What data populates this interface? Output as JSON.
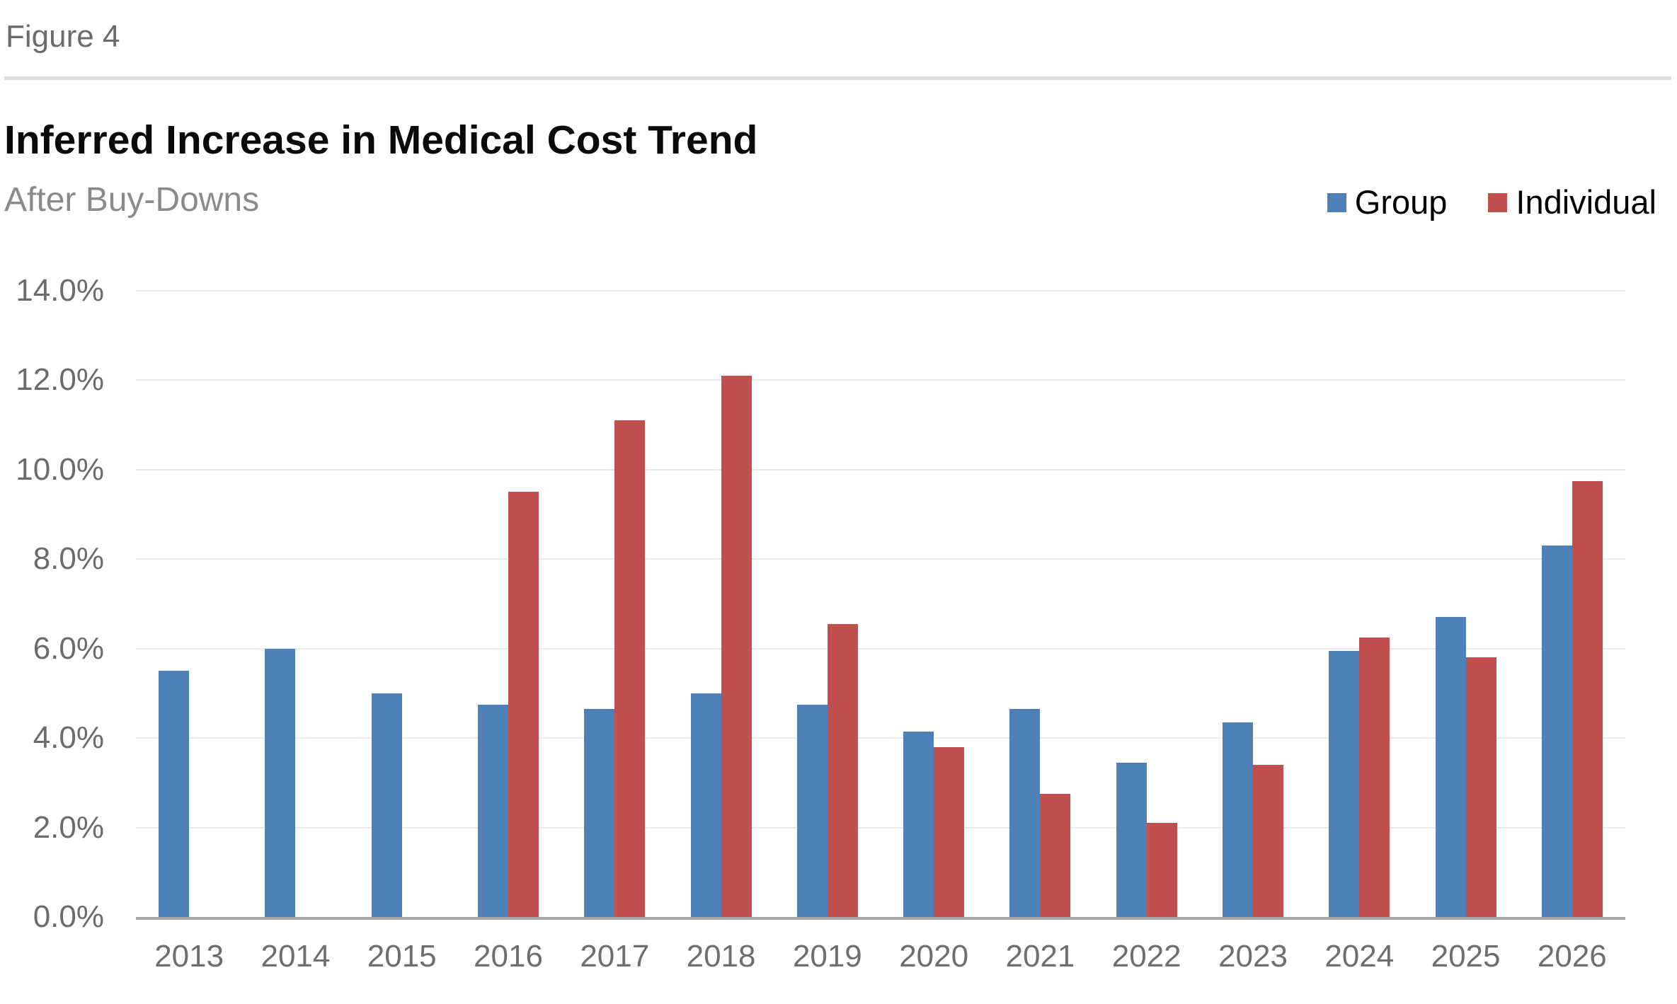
{
  "figure_label": "Figure 4",
  "title": "Inferred Increase in Medical Cost Trend",
  "subtitle": "After Buy-Downs",
  "legend": {
    "position": "top-right",
    "items": [
      {
        "label": "Group",
        "color": "#4e80b8"
      },
      {
        "label": "Individual",
        "color": "#bf504e"
      }
    ]
  },
  "colors": {
    "group_bar": "#4e80b8",
    "individual_bar": "#bf504e",
    "axis_text": "#6b6b6b",
    "gridline": "#eaeaea",
    "axis_line": "#a6a6a6",
    "title_text": "#0a0a0a",
    "subtitle_text": "#8a8a8a",
    "divider": "#dcdcdc"
  },
  "chart_data": {
    "type": "bar",
    "title": "Inferred Increase in Medical Cost Trend",
    "subtitle": "After Buy-Downs",
    "categories": [
      "2013",
      "2014",
      "2015",
      "2016",
      "2017",
      "2018",
      "2019",
      "2020",
      "2021",
      "2022",
      "2023",
      "2024",
      "2025",
      "2026"
    ],
    "series": [
      {
        "name": "Group",
        "color": "#4e80b8",
        "values": [
          5.5,
          6.0,
          5.0,
          4.75,
          4.65,
          5.0,
          4.75,
          4.15,
          4.65,
          3.45,
          4.35,
          5.95,
          6.7,
          8.3
        ]
      },
      {
        "name": "Individual",
        "color": "#bf504e",
        "values": [
          null,
          null,
          null,
          9.5,
          11.1,
          12.1,
          6.55,
          3.8,
          2.75,
          2.1,
          3.4,
          6.25,
          5.8,
          9.75
        ]
      }
    ],
    "xlabel": "",
    "ylabel": "",
    "ylim": [
      0,
      14
    ],
    "grid": true,
    "legend_position": "top-right",
    "y_ticks": [
      {
        "value": 0,
        "label": "0.0%"
      },
      {
        "value": 2,
        "label": "2.0%"
      },
      {
        "value": 4,
        "label": "4.0%"
      },
      {
        "value": 6,
        "label": "6.0%"
      },
      {
        "value": 8,
        "label": "8.0%"
      },
      {
        "value": 10,
        "label": "10.0%"
      },
      {
        "value": 12,
        "label": "12.0%"
      },
      {
        "value": 14,
        "label": "14.0%"
      }
    ]
  }
}
